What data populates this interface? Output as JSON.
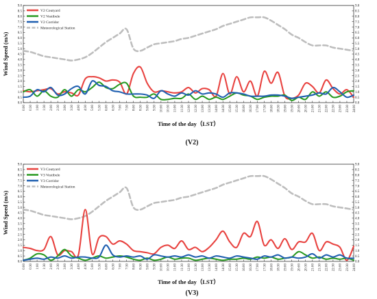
{
  "chart_data": [
    {
      "type": "line",
      "panel_label": "(V2)",
      "xlabel": "Time of the day（LST）",
      "ylabel": "Wind Speed (m/s)",
      "ylim": [
        0,
        9
      ],
      "yticks": [
        "0.0",
        "0.5",
        "1.0",
        "1.5",
        "2.0",
        "2.5",
        "3.0",
        "3.5",
        "4.0",
        "4.5",
        "5.0",
        "5.5",
        "6.0",
        "6.5",
        "7.0",
        "7.5",
        "8.0",
        "8.5",
        "9.0"
      ],
      "legend_position": "top-left",
      "categories": [
        "0:00",
        "0:30",
        "1:00",
        "1:30",
        "2:00",
        "2:30",
        "3:00",
        "3:30",
        "4:00",
        "4:30",
        "5:00",
        "5:30",
        "6:00",
        "6:30",
        "7:00",
        "7:30",
        "8:00",
        "8:30",
        "9:00",
        "9:30",
        "10:00",
        "10:30",
        "11:00",
        "11:30",
        "12:00",
        "12:30",
        "13:00",
        "13:30",
        "14:00",
        "14:30",
        "15:00",
        "15:30",
        "16:00",
        "16:30",
        "17:00",
        "17:30",
        "18:00",
        "18:30",
        "19:00",
        "19:30",
        "20:00",
        "20:30",
        "21:00",
        "21:30",
        "22:00",
        "22:30",
        "23:00",
        "23:30",
        "24:00"
      ],
      "series": [
        {
          "name": "V2 Coutyard",
          "color": "#e8423f",
          "dash": "solid",
          "values": [
            1.1,
            1.0,
            1.1,
            1.2,
            1.3,
            0.8,
            1.0,
            0.9,
            0.7,
            2.2,
            2.4,
            2.3,
            2.0,
            2.1,
            1.9,
            0.8,
            2.7,
            3.3,
            1.8,
            1.0,
            1.1,
            1.0,
            0.9,
            1.0,
            1.4,
            0.9,
            1.3,
            1.2,
            0.6,
            2.7,
            0.8,
            2.4,
            1.0,
            2.0,
            0.6,
            2.9,
            1.8,
            2.8,
            0.6,
            0.4,
            0.7,
            1.8,
            1.5,
            0.9,
            2.1,
            1.3,
            0.8,
            1.2,
            0.5
          ]
        },
        {
          "name": "V2 Vestibule",
          "color": "#2a9a22",
          "dash": "solid",
          "values": [
            1.0,
            1.2,
            0.6,
            1.1,
            0.6,
            0.5,
            1.2,
            0.6,
            1.2,
            1.0,
            1.4,
            1.9,
            1.4,
            1.3,
            1.7,
            1.8,
            0.6,
            0.5,
            0.5,
            0.8,
            0.3,
            0.3,
            0.4,
            0.4,
            0.8,
            0.3,
            0.6,
            0.3,
            0.5,
            0.3,
            0.6,
            0.9,
            0.7,
            0.6,
            0.3,
            0.5,
            0.6,
            0.6,
            0.7,
            0.2,
            0.5,
            0.3,
            1.0,
            0.6,
            1.0,
            0.5,
            0.6,
            1.0,
            1.1
          ]
        },
        {
          "name": "V2 Corridor",
          "color": "#1f5fb0",
          "dash": "solid",
          "values": [
            0.5,
            0.6,
            1.2,
            1.0,
            1.4,
            0.7,
            0.8,
            1.3,
            1.5,
            0.8,
            2.0,
            1.6,
            1.5,
            1.1,
            1.0,
            0.8,
            0.8,
            0.8,
            0.7,
            0.4,
            1.1,
            0.8,
            0.6,
            0.9,
            0.7,
            1.1,
            0.8,
            0.9,
            0.8,
            0.5,
            0.9,
            0.9,
            0.8,
            0.6,
            0.6,
            0.6,
            0.7,
            0.7,
            0.6,
            0.4,
            0.5,
            0.6,
            0.7,
            0.9,
            0.8,
            1.4,
            1.0,
            0.5,
            0.7
          ]
        },
        {
          "name": "Meteorological Station",
          "color": "#bdbdbd",
          "dash": "dashed",
          "values": [
            4.8,
            4.7,
            4.5,
            4.3,
            4.2,
            4.1,
            4.0,
            3.9,
            4.0,
            4.2,
            4.6,
            5.1,
            5.6,
            6.0,
            6.4,
            6.8,
            5.0,
            4.8,
            5.1,
            5.4,
            5.5,
            5.6,
            5.7,
            5.9,
            6.0,
            6.2,
            6.4,
            6.6,
            6.8,
            7.1,
            7.3,
            7.5,
            7.7,
            7.9,
            7.9,
            7.9,
            7.6,
            7.2,
            6.8,
            6.3,
            6.0,
            5.6,
            5.3,
            5.3,
            5.3,
            5.1,
            5.0,
            4.9,
            4.8
          ]
        }
      ]
    },
    {
      "type": "line",
      "panel_label": "(V3)",
      "xlabel": "Time of the day（LST）",
      "ylabel": "Wind Speed (m/s)",
      "ylim": [
        0,
        9
      ],
      "yticks": [
        "0.0",
        "0.5",
        "1.0",
        "1.5",
        "2.0",
        "2.5",
        "3.0",
        "3.5",
        "4.0",
        "4.5",
        "5.0",
        "5.5",
        "6.0",
        "6.5",
        "7.0",
        "7.5",
        "8.0",
        "8.5",
        "9.0"
      ],
      "legend_position": "top-left",
      "categories": [
        "0:00",
        "0:30",
        "1:00",
        "1:30",
        "2:00",
        "2:30",
        "3:00",
        "3:30",
        "4:00",
        "4:30",
        "5:00",
        "5:30",
        "6:00",
        "6:30",
        "7:00",
        "7:30",
        "8:00",
        "8:30",
        "9:00",
        "9:30",
        "10:00",
        "10:30",
        "11:00",
        "11:30",
        "12:00",
        "12:30",
        "13:00",
        "13:30",
        "14:00",
        "14:30",
        "15:00",
        "15:30",
        "16:00",
        "16:30",
        "17:00",
        "17:30",
        "18:00",
        "18:30",
        "19:00",
        "19:30",
        "20:00",
        "20:30",
        "21:00",
        "21:30",
        "22:00",
        "22:30",
        "23:00",
        "23:30",
        "24:00"
      ],
      "series": [
        {
          "name": "V3 Coutyard",
          "color": "#e8423f",
          "dash": "solid",
          "values": [
            1.3,
            1.2,
            1.0,
            1.1,
            2.3,
            0.6,
            1.0,
            0.9,
            0.6,
            4.8,
            0.7,
            2.2,
            2.3,
            1.6,
            1.9,
            1.6,
            1.0,
            0.9,
            0.8,
            0.7,
            1.3,
            1.5,
            1.2,
            1.9,
            1.1,
            1.3,
            0.9,
            1.3,
            2.0,
            2.8,
            1.8,
            1.3,
            2.6,
            2.3,
            3.7,
            1.5,
            2.0,
            1.2,
            2.1,
            1.1,
            1.8,
            1.8,
            2.6,
            1.0,
            1.8,
            1.6,
            1.3,
            0.1,
            1.4
          ]
        },
        {
          "name": "V3 Vestibule",
          "color": "#2a9a22",
          "dash": "solid",
          "values": [
            0.1,
            0.3,
            0.7,
            0.6,
            0.1,
            0.5,
            1.1,
            0.5,
            0.3,
            0.1,
            0.3,
            0.5,
            0.3,
            0.4,
            0.5,
            0.4,
            0.2,
            0.1,
            0.3,
            0.1,
            0.2,
            0.4,
            0.2,
            0.3,
            0.3,
            0.1,
            0.2,
            0.3,
            0.2,
            0.1,
            0.2,
            0.2,
            0.3,
            0.2,
            0.4,
            0.3,
            0.4,
            0.2,
            0.3,
            0.4,
            0.9,
            0.6,
            0.3,
            0.4,
            0.2,
            0.3,
            0.2,
            0.3,
            0.1
          ]
        },
        {
          "name": "V3 Corridor",
          "color": "#1f5fb0",
          "dash": "solid",
          "values": [
            0.1,
            0.2,
            0.3,
            0.2,
            0.4,
            0.3,
            0.5,
            0.3,
            0.4,
            0.4,
            0.3,
            0.4,
            1.5,
            0.6,
            0.4,
            0.5,
            0.4,
            0.5,
            0.2,
            0.6,
            0.5,
            0.4,
            0.5,
            0.4,
            0.6,
            0.4,
            0.5,
            0.3,
            0.5,
            0.4,
            0.3,
            0.5,
            0.4,
            0.3,
            0.2,
            0.5,
            0.4,
            0.6,
            0.3,
            0.4,
            0.3,
            0.4,
            0.7,
            0.3,
            0.6,
            0.4,
            0.6,
            0.3,
            0.3
          ]
        },
        {
          "name": "Meteorological Station",
          "color": "#bdbdbd",
          "dash": "dashed",
          "values": [
            4.8,
            4.7,
            4.5,
            4.3,
            4.2,
            4.1,
            4.0,
            3.9,
            4.0,
            4.2,
            4.6,
            5.1,
            5.6,
            6.0,
            6.4,
            6.8,
            5.0,
            4.8,
            5.1,
            5.4,
            5.5,
            5.6,
            5.7,
            5.9,
            6.0,
            6.2,
            6.4,
            6.6,
            6.8,
            7.1,
            7.3,
            7.5,
            7.7,
            7.9,
            7.9,
            7.9,
            7.6,
            7.2,
            6.8,
            6.3,
            6.0,
            5.6,
            5.3,
            5.3,
            5.3,
            5.1,
            5.0,
            4.9,
            4.8
          ]
        }
      ]
    }
  ]
}
